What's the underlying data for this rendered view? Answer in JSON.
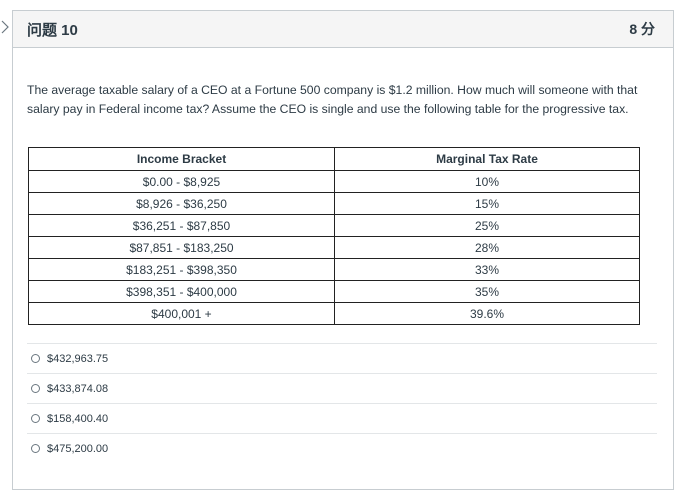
{
  "question": {
    "title": "问题 10",
    "points": "8 分",
    "text": "The average taxable salary of a CEO at a Fortune 500 company is $1.2 million.  How much will someone with that salary pay in Federal income tax?  Assume the CEO is single and use the following table for the progressive tax."
  },
  "table": {
    "headers": [
      "Income Bracket",
      "Marginal Tax Rate"
    ],
    "rows": [
      [
        "$0.00 - $8,925",
        "10%"
      ],
      [
        "$8,926 - $36,250",
        "15%"
      ],
      [
        "$36,251 - $87,850",
        "25%"
      ],
      [
        "$87,851 - $183,250",
        "28%"
      ],
      [
        "$183,251 - $398,350",
        "33%"
      ],
      [
        "$398,351 - $400,000",
        "35%"
      ],
      [
        "$400,001 +",
        "39.6%"
      ]
    ]
  },
  "answers": [
    {
      "label": "$432,963.75"
    },
    {
      "label": "$433,874.08"
    },
    {
      "label": "$158,400.40"
    },
    {
      "label": "$475,200.00"
    }
  ]
}
